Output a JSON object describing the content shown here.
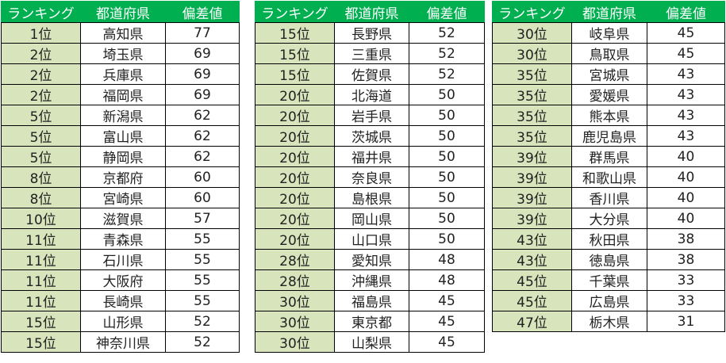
{
  "headers": [
    "ランキング",
    "都道府県",
    "偏差値"
  ],
  "colors": {
    "header_bg": "#00b050",
    "rank_bg": "#d8e4bc"
  },
  "tables": [
    [
      [
        "1位",
        "高知県",
        "77"
      ],
      [
        "2位",
        "埼玉県",
        "69"
      ],
      [
        "2位",
        "兵庫県",
        "69"
      ],
      [
        "2位",
        "福岡県",
        "69"
      ],
      [
        "5位",
        "新潟県",
        "62"
      ],
      [
        "5位",
        "富山県",
        "62"
      ],
      [
        "5位",
        "静岡県",
        "62"
      ],
      [
        "8位",
        "京都府",
        "60"
      ],
      [
        "8位",
        "宮崎県",
        "60"
      ],
      [
        "10位",
        "滋賀県",
        "57"
      ],
      [
        "11位",
        "青森県",
        "55"
      ],
      [
        "11位",
        "石川県",
        "55"
      ],
      [
        "11位",
        "大阪府",
        "55"
      ],
      [
        "11位",
        "長崎県",
        "55"
      ],
      [
        "15位",
        "山形県",
        "52"
      ],
      [
        "15位",
        "神奈川県",
        "52"
      ]
    ],
    [
      [
        "15位",
        "長野県",
        "52"
      ],
      [
        "15位",
        "三重県",
        "52"
      ],
      [
        "15位",
        "佐賀県",
        "52"
      ],
      [
        "20位",
        "北海道",
        "50"
      ],
      [
        "20位",
        "岩手県",
        "50"
      ],
      [
        "20位",
        "茨城県",
        "50"
      ],
      [
        "20位",
        "福井県",
        "50"
      ],
      [
        "20位",
        "奈良県",
        "50"
      ],
      [
        "20位",
        "島根県",
        "50"
      ],
      [
        "20位",
        "岡山県",
        "50"
      ],
      [
        "20位",
        "山口県",
        "50"
      ],
      [
        "28位",
        "愛知県",
        "48"
      ],
      [
        "28位",
        "沖縄県",
        "48"
      ],
      [
        "30位",
        "福島県",
        "45"
      ],
      [
        "30位",
        "東京都",
        "45"
      ],
      [
        "30位",
        "山梨県",
        "45"
      ]
    ],
    [
      [
        "30位",
        "岐阜県",
        "45"
      ],
      [
        "30位",
        "鳥取県",
        "45"
      ],
      [
        "35位",
        "宮城県",
        "43"
      ],
      [
        "35位",
        "愛媛県",
        "43"
      ],
      [
        "35位",
        "熊本県",
        "43"
      ],
      [
        "35位",
        "鹿児島県",
        "43"
      ],
      [
        "39位",
        "群馬県",
        "40"
      ],
      [
        "39位",
        "和歌山県",
        "40"
      ],
      [
        "39位",
        "香川県",
        "40"
      ],
      [
        "39位",
        "大分県",
        "40"
      ],
      [
        "43位",
        "秋田県",
        "38"
      ],
      [
        "43位",
        "徳島県",
        "38"
      ],
      [
        "45位",
        "千葉県",
        "33"
      ],
      [
        "45位",
        "広島県",
        "33"
      ],
      [
        "47位",
        "栃木県",
        "31"
      ]
    ]
  ]
}
